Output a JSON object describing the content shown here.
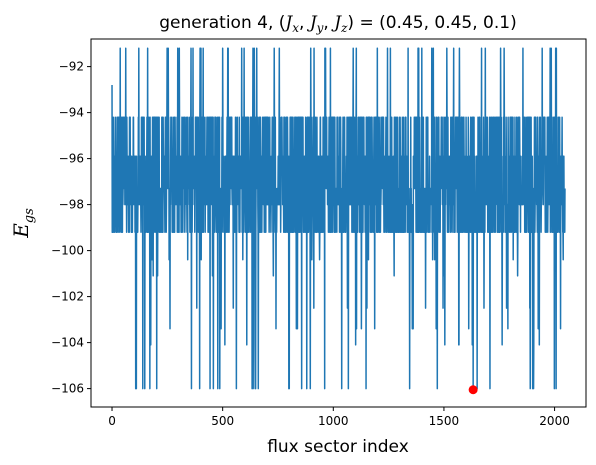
{
  "chart_data": {
    "type": "line",
    "title": "generation 4, (Jx, Jy, Jz) = (0.45, 0.45, 0.1)",
    "title_parts": {
      "prefix": "generation 4, ",
      "J": "J",
      "x": "x",
      "y": "y",
      "z": "z",
      "values": "= (0.45, 0.45, 0.1)"
    },
    "xlabel": "flux sector index",
    "ylabel": {
      "E": "E",
      "subscript": "gs"
    },
    "xlim": [
      -95,
      2142
    ],
    "ylim": [
      -106.8,
      -90.8
    ],
    "xticks": [
      0,
      500,
      1000,
      1500,
      2000
    ],
    "xtick_labels": [
      "0",
      "500",
      "1000",
      "1500",
      "2000"
    ],
    "yticks": [
      -106,
      -104,
      -102,
      -100,
      -98,
      -96,
      -94,
      -92
    ],
    "ytick_labels": [
      "−106",
      "−104",
      "−102",
      "−100",
      "−98",
      "−96",
      "−94",
      "−92"
    ],
    "grid": false,
    "series": [
      {
        "color": "#1f77b4",
        "n_points": 2048,
        "levels": [
          -91.2,
          -94.2,
          -95.9,
          -97.3,
          -98.0,
          -99.2,
          -100.4,
          -101.1,
          -102.5,
          -103.4,
          -104.1,
          -106.0
        ]
      }
    ],
    "highlight_point": {
      "x": 1632,
      "y": -106.05,
      "color": "#ff0000"
    }
  }
}
